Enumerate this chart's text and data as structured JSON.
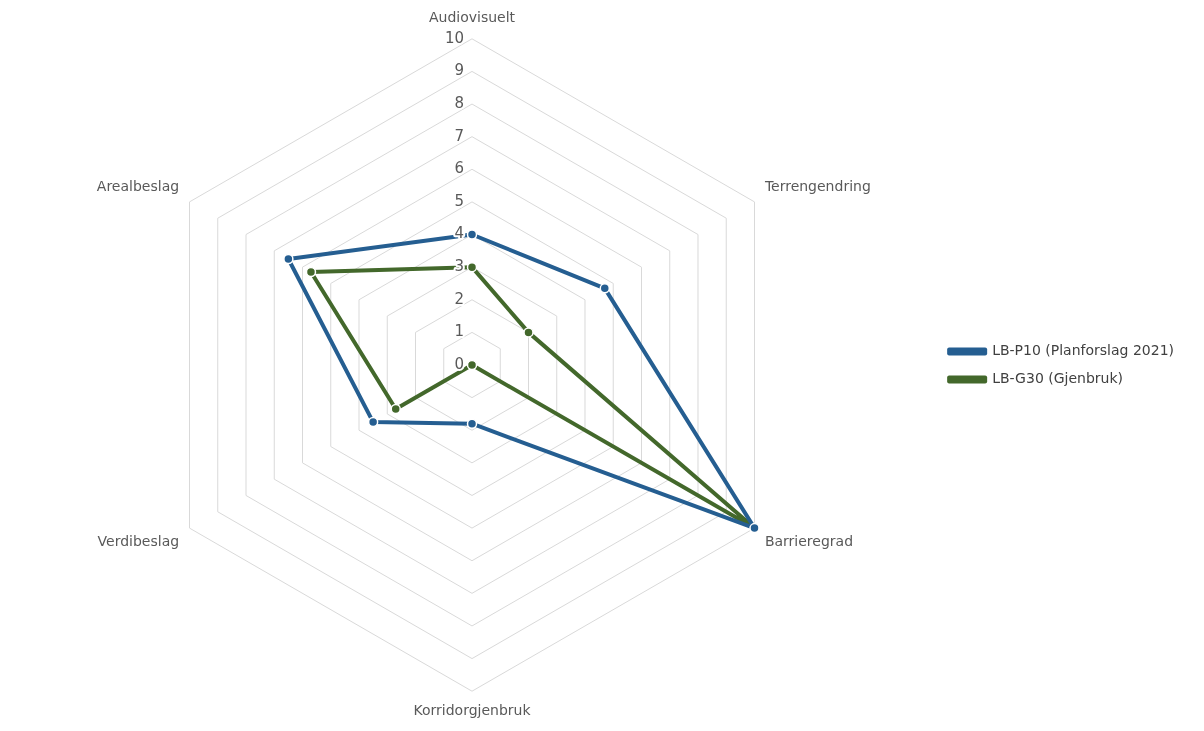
{
  "chart_data": {
    "type": "radar",
    "categories": [
      "Audiovisuelt",
      "Terrengendring",
      "Barrieregrad",
      "Korridorgjenbruk",
      "Verdibeslag",
      "Arealbeslag"
    ],
    "series": [
      {
        "name": "LB-P10 (Planforslag 2021)",
        "color": "#255e91",
        "values": [
          4,
          4.7,
          10,
          1.8,
          3.5,
          6.5
        ]
      },
      {
        "name": "LB-G30 (Gjenbruk)",
        "color": "#43682b",
        "values": [
          3,
          2,
          10,
          0,
          2.7,
          5.7
        ]
      }
    ],
    "ylim": [
      0,
      10
    ],
    "yticks": [
      0,
      1,
      2,
      3,
      4,
      5,
      6,
      7,
      8,
      9,
      10
    ],
    "grid": true,
    "legend": "right",
    "marker": "circle"
  }
}
